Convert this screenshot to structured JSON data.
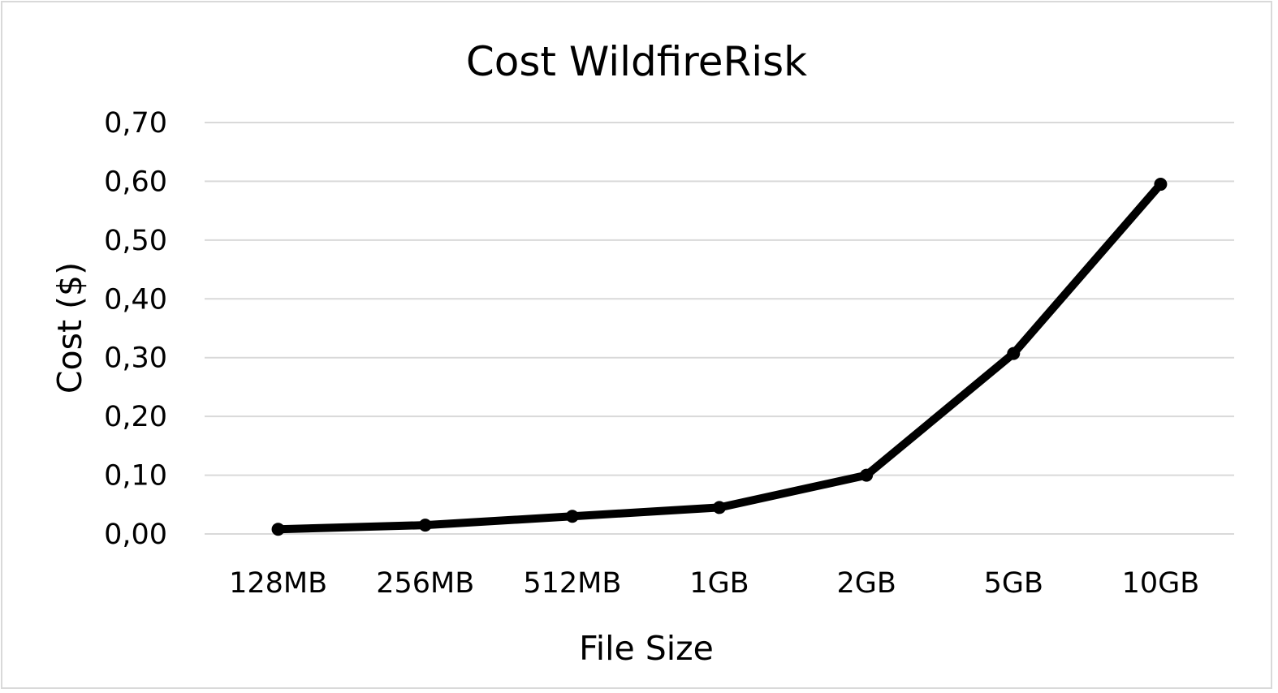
{
  "chart_data": {
    "type": "line",
    "title": "Cost WildfireRisk",
    "xlabel": "File Size",
    "ylabel": "Cost ($)",
    "categories": [
      "128MB",
      "256MB",
      "512MB",
      "1GB",
      "2GB",
      "5GB",
      "10GB"
    ],
    "series": [
      {
        "values": [
          0.008,
          0.015,
          0.03,
          0.045,
          0.1,
          0.307,
          0.595
        ],
        "color": "#000000"
      }
    ],
    "ylim": [
      0,
      0.7
    ],
    "yticks": [
      "0,00",
      "0,10",
      "0,20",
      "0,30",
      "0,40",
      "0,50",
      "0,60",
      "0,70"
    ],
    "grid": true,
    "legend": "none"
  }
}
